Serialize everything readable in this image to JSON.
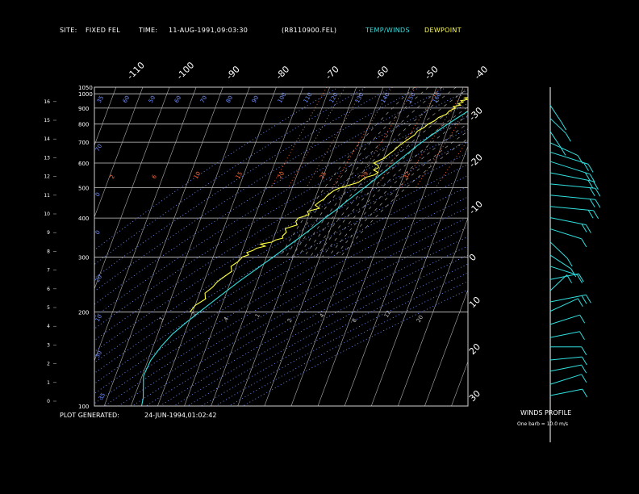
{
  "header": {
    "site_label": "SITE:",
    "site_value": "FIXED FEL",
    "time_label": "TIME:",
    "time_value": "11-AUG-1991,09:03:30",
    "file": "(R8110900.FEL)",
    "legend_temp": "TEMP/WINDS",
    "legend_dew": "DEWPOINT"
  },
  "footer": {
    "generated_label": "PLOT GENERATED:",
    "generated_value": "24-JUN-1994,01:02:42"
  },
  "winds": {
    "title": "WINDS PROFILE",
    "note": "One barb = 10.0 m/s"
  },
  "colors": {
    "temperature": "#30e0e0",
    "dewpoint": "#ffff40",
    "isobar": "#c8c8c8",
    "isotherm": "#b0b0b0",
    "mixing": "#ff6a3a",
    "dry_adiabat": "#6f8fff",
    "moist_adiabat": "#a0a0a0",
    "text": "#ffffff"
  },
  "chart_data": {
    "type": "line",
    "diagram": "skew-t log-p",
    "pressure_ticks": [
      "100",
      "200",
      "300",
      "400",
      "500",
      "600",
      "700",
      "800",
      "900",
      "1000",
      "1050"
    ],
    "height_ticks": [
      "0",
      "1",
      "2",
      "3",
      "4",
      "5",
      "6",
      "7",
      "8",
      "9",
      "10",
      "11",
      "12",
      "13",
      "14",
      "15",
      "16"
    ],
    "temp_ticks_top": [
      "-110",
      "-100",
      "-90",
      "-80",
      "-70",
      "-60",
      "-50",
      "-40"
    ],
    "temp_ticks_right": [
      "-30",
      "-20",
      "-10",
      "0",
      "10",
      "20",
      "30"
    ],
    "mixing_ratio_labels": [
      ".1",
      ".2",
      ".4",
      "1",
      "2",
      "4",
      "8",
      "12",
      "20"
    ],
    "upper_labels_red": [
      "2",
      "6",
      "10",
      "15",
      "20",
      "25",
      "29",
      "32"
    ],
    "adiabat_labels": [
      "35",
      "60",
      "50",
      "60",
      "70",
      "80",
      "90",
      "100",
      "110",
      "120",
      "130",
      "140",
      "150",
      "160"
    ],
    "adiabat_labels_left": [
      "70",
      "0",
      "0",
      "20",
      "10",
      "30"
    ],
    "xrange": [
      -40,
      50
    ],
    "ylim": [
      1050,
      100
    ],
    "series": [
      {
        "name": "TEMP/WINDS",
        "pressure": [
          1000,
          990,
          970,
          950,
          925,
          900,
          875,
          850,
          825,
          800,
          775,
          750,
          725,
          700,
          675,
          650,
          625,
          600,
          575,
          550,
          525,
          500,
          475,
          450,
          425,
          400,
          375,
          350,
          325,
          300,
          275,
          250,
          225,
          200,
          185,
          170,
          155,
          140,
          125,
          115,
          106,
          100
        ],
        "temp": [
          23,
          22.4,
          21.5,
          20.3,
          18.4,
          16.6,
          14.8,
          13,
          11.2,
          9.4,
          7.6,
          5.8,
          4.0,
          2.2,
          0.4,
          -1.2,
          -3.0,
          -4.8,
          -6.8,
          -8.8,
          -10.8,
          -13,
          -15.5,
          -18,
          -20.5,
          -23.5,
          -26.5,
          -29.8,
          -33.5,
          -37.5,
          -42,
          -47,
          -52,
          -57.5,
          -61,
          -64.5,
          -67,
          -69,
          -69.5,
          -68,
          -66.5,
          -66
        ]
      },
      {
        "name": "DEWPOINT",
        "pressure": [
          1000,
          990,
          980,
          970,
          960,
          950,
          940,
          930,
          920,
          910,
          900,
          880,
          860,
          840,
          820,
          800,
          780,
          760,
          740,
          720,
          700,
          680,
          660,
          640,
          620,
          600,
          590,
          580,
          570,
          560,
          550,
          540,
          530,
          520,
          510,
          500,
          490,
          480,
          470,
          460,
          450,
          440,
          430,
          420,
          410,
          400,
          390,
          380,
          370,
          360,
          350,
          345,
          340,
          335,
          330,
          325,
          320,
          315,
          310,
          305,
          300,
          290,
          280,
          270,
          260,
          250,
          240,
          230,
          220,
          210,
          200
        ],
        "temp": [
          14,
          13,
          14.5,
          12,
          13.5,
          11,
          12,
          10.5,
          11.5,
          9,
          10,
          8,
          7.5,
          5,
          4,
          2,
          1,
          -1,
          -1.5,
          -3,
          -4.5,
          -6,
          -7,
          -8.5,
          -10,
          -13,
          -11,
          -10.5,
          -12,
          -10,
          -11,
          -14,
          -15,
          -16,
          -19,
          -22,
          -24,
          -25,
          -26,
          -26.5,
          -28,
          -29,
          -27,
          -31,
          -30,
          -33.5,
          -34,
          -33,
          -37,
          -36,
          -37,
          -36.5,
          -39,
          -40,
          -44,
          -42,
          -45,
          -46,
          -48,
          -47,
          -49,
          -50,
          -52,
          -51,
          -53,
          -55,
          -56,
          -58,
          -57,
          -60,
          -61
        ]
      }
    ],
    "wind_barbs": {
      "units": "m/s",
      "barb_value": 10.0,
      "levels": [
        {
          "h": 0.3,
          "dir": 250,
          "spd": 12
        },
        {
          "h": 0.9,
          "dir": 240,
          "spd": 14
        },
        {
          "h": 1.6,
          "dir": 250,
          "spd": 11
        },
        {
          "h": 2.2,
          "dir": 260,
          "spd": 10
        },
        {
          "h": 2.9,
          "dir": 270,
          "spd": 9
        },
        {
          "h": 3.4,
          "dir": 250,
          "spd": 9
        },
        {
          "h": 4.1,
          "dir": 240,
          "spd": 12
        },
        {
          "h": 4.8,
          "dir": 230,
          "spd": 14
        },
        {
          "h": 5.3,
          "dir": 250,
          "spd": 16
        },
        {
          "h": 5.9,
          "dir": 210,
          "spd": 11
        },
        {
          "h": 6.5,
          "dir": 250,
          "spd": 8
        },
        {
          "h": 7.2,
          "dir": 300,
          "spd": 9
        },
        {
          "h": 7.8,
          "dir": 320,
          "spd": 10
        },
        {
          "h": 8.5,
          "dir": 330,
          "spd": 12
        },
        {
          "h": 9.2,
          "dir": 300,
          "spd": 14
        },
        {
          "h": 9.8,
          "dir": 290,
          "spd": 16
        },
        {
          "h": 10.4,
          "dir": 280,
          "spd": 22
        },
        {
          "h": 11.0,
          "dir": 280,
          "spd": 24
        },
        {
          "h": 11.6,
          "dir": 280,
          "spd": 24
        },
        {
          "h": 12.2,
          "dir": 290,
          "spd": 24
        },
        {
          "h": 12.8,
          "dir": 300,
          "spd": 24
        },
        {
          "h": 13.3,
          "dir": 300,
          "spd": 22
        },
        {
          "h": 13.8,
          "dir": 310,
          "spd": 14
        },
        {
          "h": 14.4,
          "dir": 340,
          "spd": 8
        },
        {
          "h": 15.1,
          "dir": 330,
          "spd": 9
        },
        {
          "h": 15.8,
          "dir": 340,
          "spd": 10
        }
      ]
    }
  }
}
